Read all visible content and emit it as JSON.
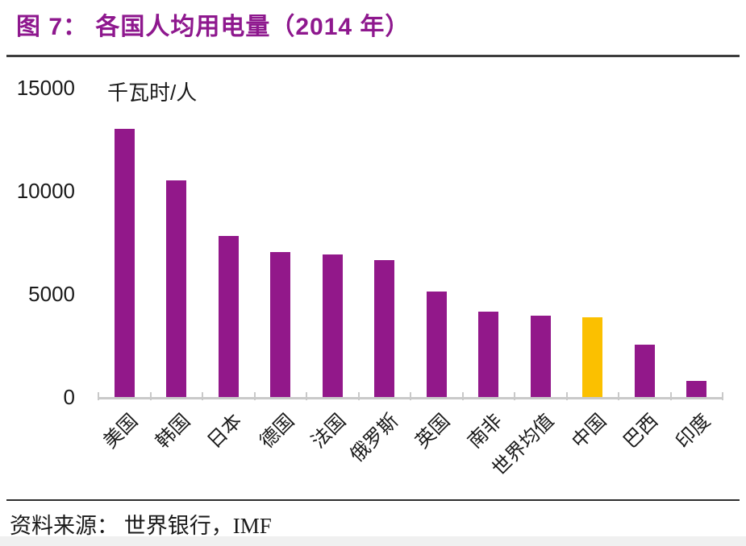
{
  "figure": {
    "title": "图 7： 各国人均用电量（2014 年）",
    "source_label": "资料来源： 世界银行，IMF"
  },
  "chart_data": {
    "type": "bar",
    "title": "图 7： 各国人均用电量（2014 年）",
    "unit_label": "千瓦时/人",
    "categories": [
      "美国",
      "韩国",
      "日本",
      "德国",
      "法国",
      "俄罗斯",
      "英国",
      "南非",
      "世界均值",
      "中国",
      "巴西",
      "印度"
    ],
    "values": [
      13000,
      10500,
      7800,
      7050,
      6900,
      6650,
      5100,
      4150,
      3950,
      3850,
      2550,
      800
    ],
    "ylabel": "千瓦时/人",
    "xlabel": "",
    "ylim": [
      0,
      15000
    ],
    "yticks": [
      0,
      5000,
      10000,
      15000
    ],
    "grid": false,
    "legend_position": "none",
    "highlight_category": "中国",
    "highlight_index": 9,
    "bar_color": "#92188A",
    "highlight_color": "#FBC000",
    "axis_color": "#C9C9C9",
    "source": "资料来源： 世界银行，IMF"
  },
  "colors": {
    "title": "#8E188E",
    "text": "#1a1a1a",
    "separator": "#3D3D3D",
    "bottom_strip": "#F0F0F0"
  }
}
